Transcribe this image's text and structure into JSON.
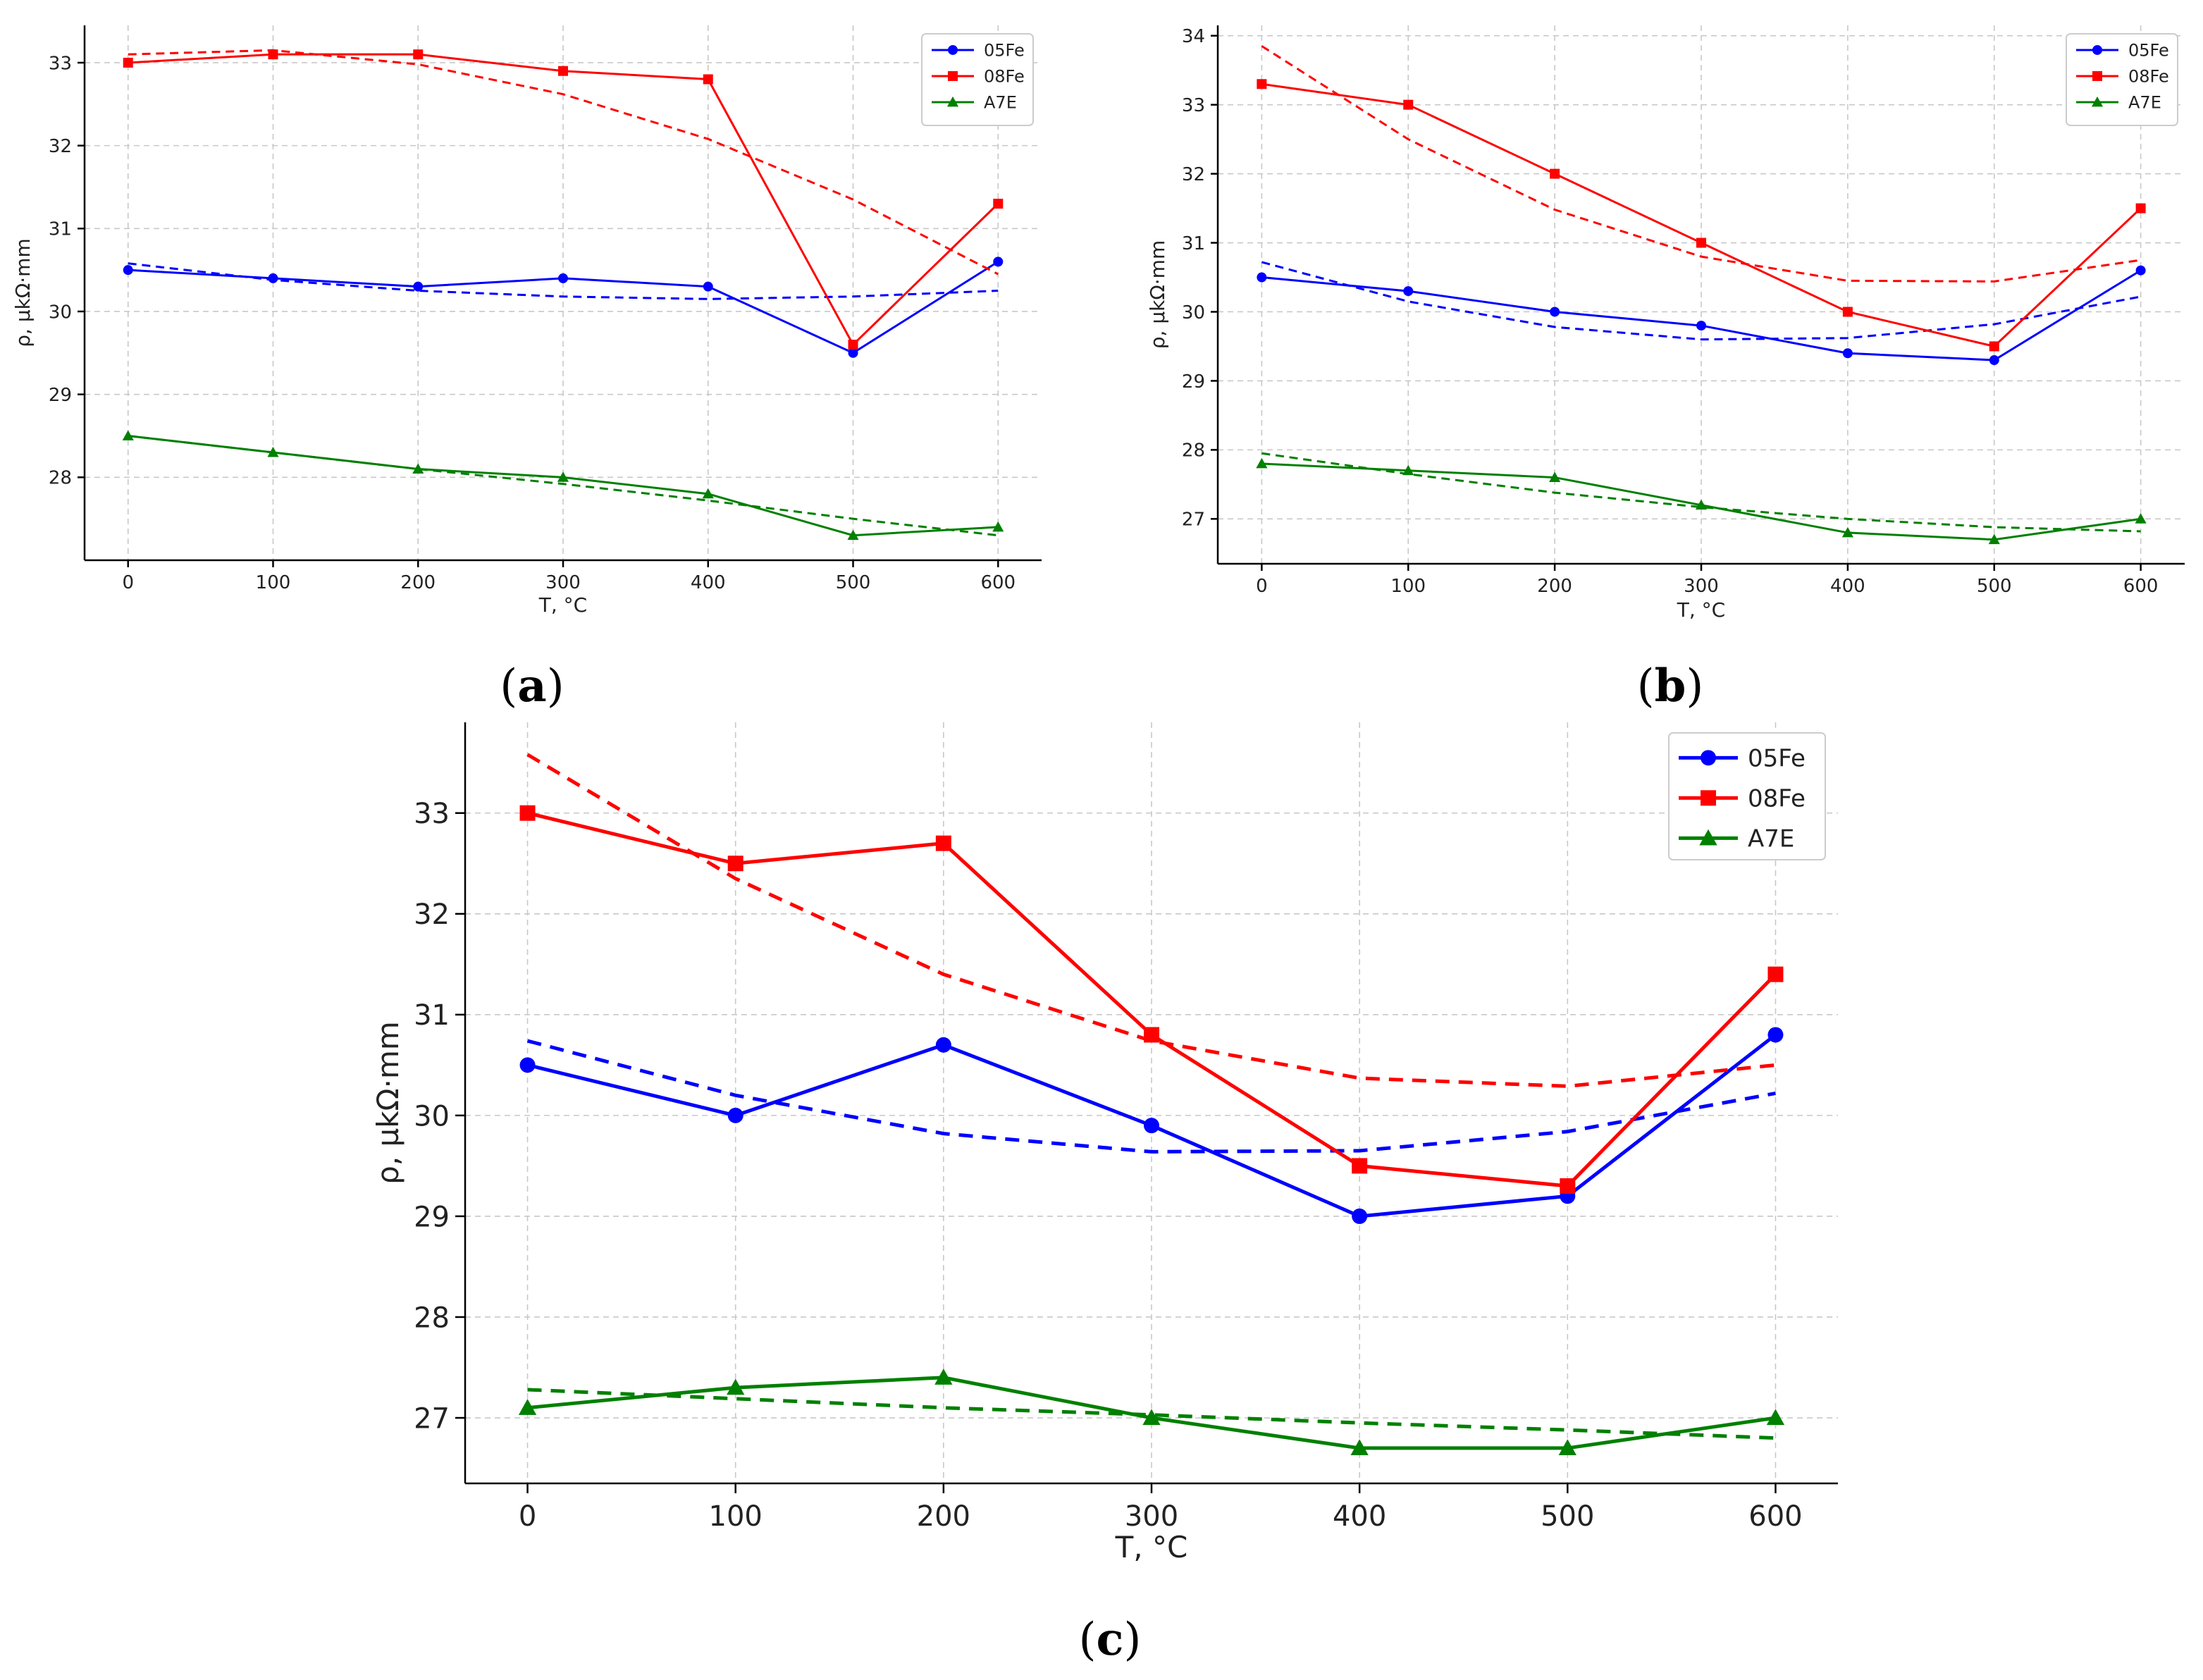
{
  "chart_data": [
    {
      "panel": "a",
      "type": "line",
      "xlabel": "T, °C",
      "ylabel": "ρ, µkΩ·mm",
      "x": [
        0,
        100,
        200,
        300,
        400,
        500,
        600
      ],
      "xticks": [
        "0",
        "100",
        "200",
        "300",
        "400",
        "500",
        "600"
      ],
      "yticks": [
        "28",
        "29",
        "30",
        "31",
        "32",
        "33"
      ],
      "xlim": [
        -30,
        630
      ],
      "ylim": [
        27.0,
        33.45
      ],
      "grid": true,
      "legend_position": "top-right",
      "series": [
        {
          "name": "05Fe",
          "color": "#0000ff",
          "marker": "circle",
          "values": [
            30.5,
            30.4,
            30.3,
            30.4,
            30.3,
            29.5,
            30.6
          ],
          "trend": [
            30.58,
            30.38,
            30.25,
            30.18,
            30.15,
            30.18,
            30.25
          ]
        },
        {
          "name": "08Fe",
          "color": "#ff0000",
          "marker": "square",
          "values": [
            33.0,
            33.1,
            33.1,
            32.9,
            32.8,
            29.6,
            31.3
          ],
          "trend": [
            33.1,
            33.15,
            32.98,
            32.62,
            32.08,
            31.35,
            30.45
          ]
        },
        {
          "name": "A7E",
          "color": "#008000",
          "marker": "triangle",
          "values": [
            28.5,
            28.3,
            28.1,
            28.0,
            27.8,
            27.3,
            27.4
          ],
          "trend": [
            28.5,
            28.3,
            28.1,
            27.92,
            27.72,
            27.5,
            27.3
          ]
        }
      ]
    },
    {
      "panel": "b",
      "type": "line",
      "xlabel": "T, °C",
      "ylabel": "ρ, µkΩ·mm",
      "x": [
        0,
        100,
        200,
        300,
        400,
        500,
        600
      ],
      "xticks": [
        "0",
        "100",
        "200",
        "300",
        "400",
        "500",
        "600"
      ],
      "yticks": [
        "27",
        "28",
        "29",
        "30",
        "31",
        "32",
        "33",
        "34"
      ],
      "xlim": [
        -30,
        630
      ],
      "ylim": [
        26.35,
        34.15
      ],
      "grid": true,
      "legend_position": "top-right",
      "series": [
        {
          "name": "05Fe",
          "color": "#0000ff",
          "marker": "circle",
          "values": [
            30.5,
            30.3,
            30.0,
            29.8,
            29.4,
            29.3,
            30.6
          ],
          "trend": [
            30.72,
            30.15,
            29.78,
            29.6,
            29.62,
            29.82,
            30.22
          ]
        },
        {
          "name": "08Fe",
          "color": "#ff0000",
          "marker": "square",
          "values": [
            33.3,
            33.0,
            32.0,
            31.0,
            30.0,
            29.5,
            31.5
          ],
          "trend": [
            33.85,
            32.5,
            31.48,
            30.8,
            30.45,
            30.44,
            30.75
          ]
        },
        {
          "name": "A7E",
          "color": "#008000",
          "marker": "triangle",
          "values": [
            27.8,
            27.7,
            27.6,
            27.2,
            26.8,
            26.7,
            27.0
          ],
          "trend": [
            27.95,
            27.65,
            27.38,
            27.17,
            27.0,
            26.88,
            26.82
          ]
        }
      ]
    },
    {
      "panel": "c",
      "type": "line",
      "xlabel": "T, °C",
      "ylabel": "ρ, µkΩ·mm",
      "x": [
        0,
        100,
        200,
        300,
        400,
        500,
        600
      ],
      "xticks": [
        "0",
        "100",
        "200",
        "300",
        "400",
        "500",
        "600"
      ],
      "yticks": [
        "27",
        "28",
        "29",
        "30",
        "31",
        "32",
        "33"
      ],
      "xlim": [
        -30,
        630
      ],
      "ylim": [
        26.35,
        33.9
      ],
      "grid": true,
      "legend_position": "top-right",
      "series": [
        {
          "name": "05Fe",
          "color": "#0000ff",
          "marker": "circle",
          "values": [
            30.5,
            30.0,
            30.7,
            29.9,
            29.0,
            29.2,
            30.8
          ],
          "trend": [
            30.74,
            30.2,
            29.82,
            29.64,
            29.65,
            29.84,
            30.22
          ]
        },
        {
          "name": "08Fe",
          "color": "#ff0000",
          "marker": "square",
          "values": [
            33.0,
            32.5,
            32.7,
            30.8,
            29.5,
            29.3,
            31.4
          ],
          "trend": [
            33.58,
            32.35,
            31.4,
            30.74,
            30.37,
            30.29,
            30.5
          ]
        },
        {
          "name": "A7E",
          "color": "#008000",
          "marker": "triangle",
          "values": [
            27.1,
            27.3,
            27.4,
            27.0,
            26.7,
            26.7,
            27.0
          ],
          "trend": [
            27.28,
            27.19,
            27.1,
            27.03,
            26.95,
            26.88,
            26.8
          ]
        }
      ]
    }
  ],
  "panel_labels": [
    "a",
    "b",
    "c"
  ]
}
